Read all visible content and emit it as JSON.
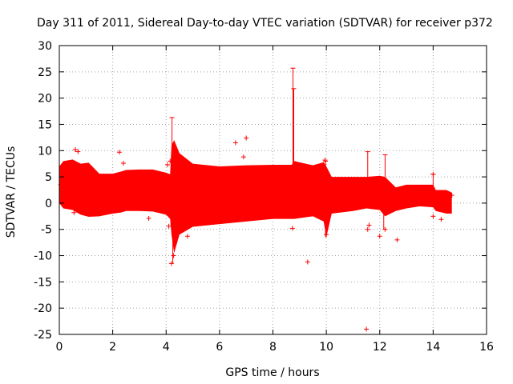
{
  "chart_data": {
    "type": "scatter",
    "title": "Day 311 of 2011, Sidereal Day-to-day VTEC variation (SDTVAR) for receiver p372",
    "xlabel": "GPS time / hours",
    "ylabel": "SDTVAR / TECUs",
    "xlim": [
      0,
      16
    ],
    "ylim": [
      -25,
      30
    ],
    "xticks": [
      0,
      2,
      4,
      6,
      8,
      10,
      12,
      14,
      16
    ],
    "yticks": [
      -25,
      -20,
      -15,
      -10,
      -5,
      0,
      5,
      10,
      15,
      20,
      25,
      30
    ],
    "grid": true,
    "series_color": "#ff0000",
    "envelope": [
      {
        "x": 0.0,
        "upper": 7.0,
        "lower": 0.0
      },
      {
        "x": 0.15,
        "upper": 8.0,
        "lower": -1.0
      },
      {
        "x": 0.5,
        "upper": 8.3,
        "lower": -1.3
      },
      {
        "x": 0.8,
        "upper": 7.5,
        "lower": -2.2
      },
      {
        "x": 1.1,
        "upper": 7.7,
        "lower": -2.6
      },
      {
        "x": 1.5,
        "upper": 5.6,
        "lower": -2.5
      },
      {
        "x": 2.0,
        "upper": 5.6,
        "lower": -2.0
      },
      {
        "x": 2.3,
        "upper": 6.0,
        "lower": -1.8
      },
      {
        "x": 2.5,
        "upper": 6.3,
        "lower": -1.5
      },
      {
        "x": 3.0,
        "upper": 6.4,
        "lower": -1.5
      },
      {
        "x": 3.5,
        "upper": 6.4,
        "lower": -1.6
      },
      {
        "x": 4.0,
        "upper": 5.8,
        "lower": -2.2
      },
      {
        "x": 4.15,
        "upper": 5.5,
        "lower": -3.0
      },
      {
        "x": 4.2,
        "upper": 11.0,
        "lower": -6.0
      },
      {
        "x": 4.3,
        "upper": 12.0,
        "lower": -9.5
      },
      {
        "x": 4.5,
        "upper": 9.5,
        "lower": -6.0
      },
      {
        "x": 5.0,
        "upper": 7.5,
        "lower": -4.5
      },
      {
        "x": 6.0,
        "upper": 7.0,
        "lower": -4.0
      },
      {
        "x": 7.0,
        "upper": 7.2,
        "lower": -3.5
      },
      {
        "x": 8.0,
        "upper": 7.3,
        "lower": -3.0
      },
      {
        "x": 8.7,
        "upper": 7.3,
        "lower": -3.0
      },
      {
        "x": 8.8,
        "upper": 8.0,
        "lower": -3.0
      },
      {
        "x": 9.5,
        "upper": 7.2,
        "lower": -2.5
      },
      {
        "x": 9.9,
        "upper": 7.8,
        "lower": -3.5
      },
      {
        "x": 10.0,
        "upper": 7.0,
        "lower": -6.5
      },
      {
        "x": 10.2,
        "upper": 5.0,
        "lower": -2.0
      },
      {
        "x": 11.0,
        "upper": 5.0,
        "lower": -1.5
      },
      {
        "x": 11.5,
        "upper": 5.0,
        "lower": -1.0
      },
      {
        "x": 12.0,
        "upper": 5.2,
        "lower": -1.3
      },
      {
        "x": 12.2,
        "upper": 5.0,
        "lower": -2.5
      },
      {
        "x": 12.6,
        "upper": 3.0,
        "lower": -1.5
      },
      {
        "x": 13.0,
        "upper": 3.5,
        "lower": -1.0
      },
      {
        "x": 13.5,
        "upper": 3.5,
        "lower": -0.6
      },
      {
        "x": 14.0,
        "upper": 3.5,
        "lower": -0.8
      },
      {
        "x": 14.1,
        "upper": 2.5,
        "lower": -1.5
      },
      {
        "x": 14.5,
        "upper": 2.5,
        "lower": -2.0
      },
      {
        "x": 14.7,
        "upper": 2.0,
        "lower": -2.0
      }
    ],
    "spikes": [
      {
        "x": 4.22,
        "low": 4.0,
        "high": 16.3
      },
      {
        "x": 4.25,
        "low": -11.5,
        "high": -4.0
      },
      {
        "x": 8.75,
        "low": 7.0,
        "high": 25.7
      },
      {
        "x": 8.78,
        "low": 7.0,
        "high": 21.8
      },
      {
        "x": 9.97,
        "low": -6.5,
        "high": 8.0
      },
      {
        "x": 11.55,
        "low": 5.0,
        "high": 9.8
      },
      {
        "x": 12.2,
        "low": 5.0,
        "high": 9.2
      },
      {
        "x": 12.15,
        "low": -5.0,
        "high": -1.0
      },
      {
        "x": 14.0,
        "low": 3.0,
        "high": 5.5
      }
    ],
    "outliers": [
      {
        "x": 0.6,
        "y": 10.2
      },
      {
        "x": 0.7,
        "y": 9.8
      },
      {
        "x": 0.05,
        "y": 3.5
      },
      {
        "x": 0.1,
        "y": 2.0
      },
      {
        "x": 0.15,
        "y": 4.0
      },
      {
        "x": 0.55,
        "y": -1.8
      },
      {
        "x": 2.25,
        "y": 9.7
      },
      {
        "x": 2.4,
        "y": 7.6
      },
      {
        "x": 3.35,
        "y": -2.9
      },
      {
        "x": 4.05,
        "y": 7.3
      },
      {
        "x": 4.15,
        "y": 8.0
      },
      {
        "x": 4.1,
        "y": -4.4
      },
      {
        "x": 4.2,
        "y": -11.5
      },
      {
        "x": 4.28,
        "y": -10.0
      },
      {
        "x": 4.8,
        "y": -6.3
      },
      {
        "x": 6.6,
        "y": 11.5
      },
      {
        "x": 7.0,
        "y": 12.4
      },
      {
        "x": 6.9,
        "y": 8.8
      },
      {
        "x": 8.73,
        "y": -4.8
      },
      {
        "x": 8.85,
        "y": 7.5
      },
      {
        "x": 9.3,
        "y": -11.2
      },
      {
        "x": 9.95,
        "y": 8.2
      },
      {
        "x": 10.0,
        "y": -6.0
      },
      {
        "x": 11.5,
        "y": -24.0
      },
      {
        "x": 11.55,
        "y": -5.0
      },
      {
        "x": 11.6,
        "y": -4.2
      },
      {
        "x": 12.0,
        "y": -6.3
      },
      {
        "x": 12.15,
        "y": -1.0
      },
      {
        "x": 12.2,
        "y": -5.0
      },
      {
        "x": 12.65,
        "y": -7.0
      },
      {
        "x": 14.0,
        "y": 5.5
      },
      {
        "x": 14.0,
        "y": -2.5
      },
      {
        "x": 14.3,
        "y": -3.1
      },
      {
        "x": 14.7,
        "y": 1.5
      }
    ]
  }
}
